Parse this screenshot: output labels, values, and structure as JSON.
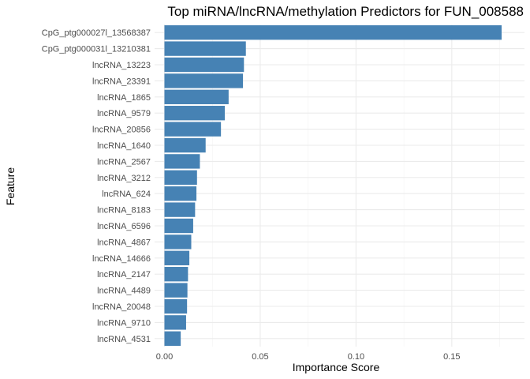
{
  "chart_data": {
    "type": "bar",
    "orientation": "horizontal",
    "title": "Top miRNA/lncRNA/methylation Predictors for FUN_008588",
    "xlabel": "Importance Score",
    "ylabel": "Feature",
    "xlim": [
      0,
      0.18
    ],
    "xticks": [
      0,
      0.05,
      0.1,
      0.15
    ],
    "xtick_labels": [
      "0.00",
      "0.05",
      "0.10",
      "0.15"
    ],
    "bar_color": "#4682B4",
    "grid": true,
    "categories": [
      "CpG_ptg000027l_13568387",
      "CpG_ptg000031l_13210381",
      "lncRNA_13223",
      "lncRNA_23391",
      "lncRNA_1865",
      "lncRNA_9579",
      "lncRNA_20856",
      "lncRNA_1640",
      "lncRNA_2567",
      "lncRNA_3212",
      "lncRNA_624",
      "lncRNA_8183",
      "lncRNA_6596",
      "lncRNA_4867",
      "lncRNA_14666",
      "lncRNA_2147",
      "lncRNA_4489",
      "lncRNA_20048",
      "lncRNA_9710",
      "lncRNA_4531"
    ],
    "values": [
      0.176,
      0.0425,
      0.0415,
      0.041,
      0.0335,
      0.0315,
      0.0295,
      0.0215,
      0.0185,
      0.017,
      0.0167,
      0.016,
      0.015,
      0.014,
      0.013,
      0.0123,
      0.012,
      0.0118,
      0.0113,
      0.0085
    ]
  }
}
